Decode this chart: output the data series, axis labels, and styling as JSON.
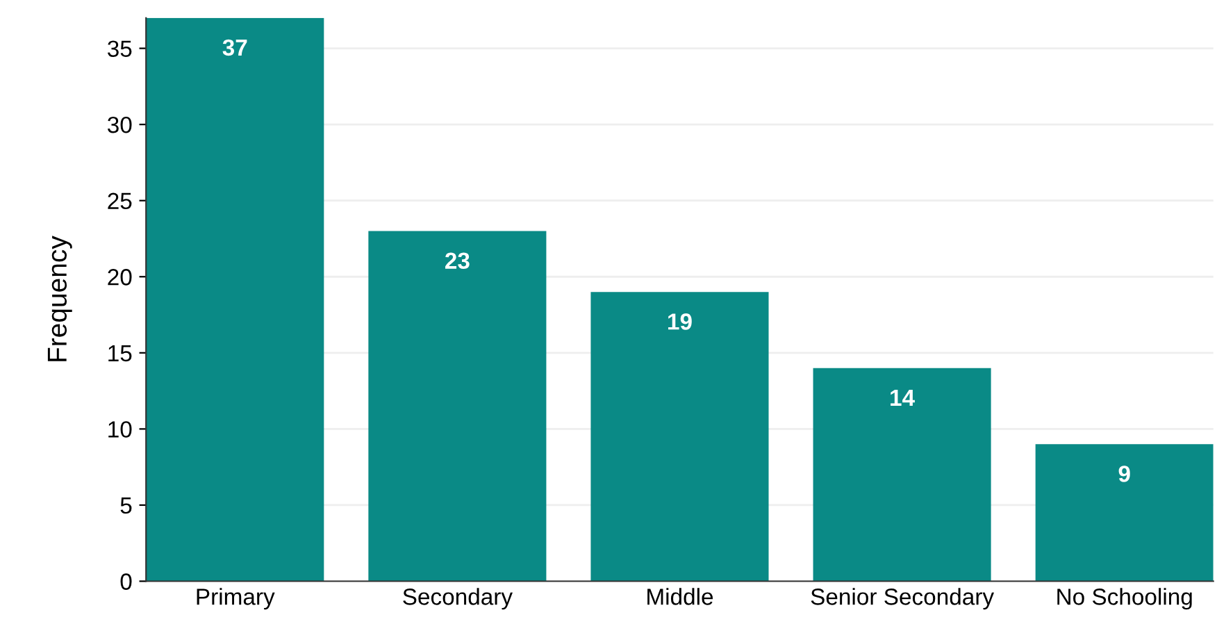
{
  "chart_data": {
    "type": "bar",
    "ylabel": "Frequency",
    "categories": [
      "Primary",
      "Secondary",
      "Middle",
      "Senior Secondary",
      "No Schooling"
    ],
    "values": [
      37,
      23,
      19,
      14,
      9
    ],
    "color": "#0a8a86",
    "ylim": [
      0,
      37
    ],
    "yticks": [
      0,
      5,
      10,
      15,
      20,
      25,
      30,
      35
    ],
    "grid": "y",
    "data_labels": true
  }
}
